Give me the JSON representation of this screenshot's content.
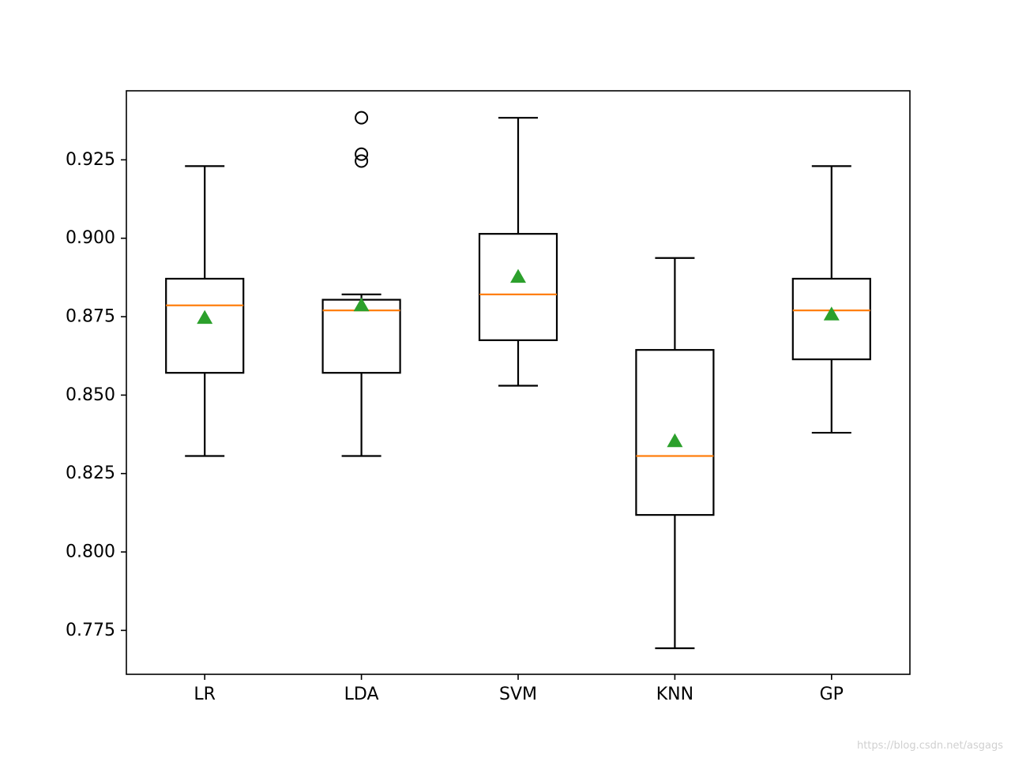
{
  "chart_data": {
    "type": "box",
    "title": "",
    "xlabel": "",
    "ylabel": "",
    "categories": [
      "LR",
      "LDA",
      "SVM",
      "KNN",
      "GP"
    ],
    "ylim": [
      0.761,
      0.947
    ],
    "yticks": [
      0.775,
      0.8,
      0.825,
      0.85,
      0.875,
      0.9,
      0.925
    ],
    "ytick_labels": [
      "0.775",
      "0.800",
      "0.825",
      "0.850",
      "0.875",
      "0.900",
      "0.925"
    ],
    "show_means": true,
    "grid": false,
    "boxes": [
      {
        "label": "LR",
        "whislo": 0.8306,
        "q1": 0.8571,
        "median": 0.8786,
        "q3": 0.8871,
        "whishi": 0.923,
        "mean": 0.8746,
        "fliers": []
      },
      {
        "label": "LDA",
        "whislo": 0.8306,
        "q1": 0.8571,
        "median": 0.877,
        "q3": 0.8804,
        "whishi": 0.8821,
        "mean": 0.8786,
        "fliers": [
          0.9384,
          0.9268,
          0.9246
        ]
      },
      {
        "label": "SVM",
        "whislo": 0.853,
        "q1": 0.8675,
        "median": 0.8821,
        "q3": 0.9014,
        "whishi": 0.9384,
        "mean": 0.8877,
        "fliers": []
      },
      {
        "label": "KNN",
        "whislo": 0.7693,
        "q1": 0.8118,
        "median": 0.8306,
        "q3": 0.8644,
        "whishi": 0.8937,
        "mean": 0.8353,
        "fliers": []
      },
      {
        "label": "GP",
        "whislo": 0.838,
        "q1": 0.8614,
        "median": 0.877,
        "q3": 0.8871,
        "whishi": 0.923,
        "mean": 0.8757,
        "fliers": []
      }
    ],
    "colors": {
      "box": "#000000",
      "median": "#ff7f0e",
      "mean": "#2ca02c"
    }
  },
  "watermark": "https://blog.csdn.net/asgags"
}
